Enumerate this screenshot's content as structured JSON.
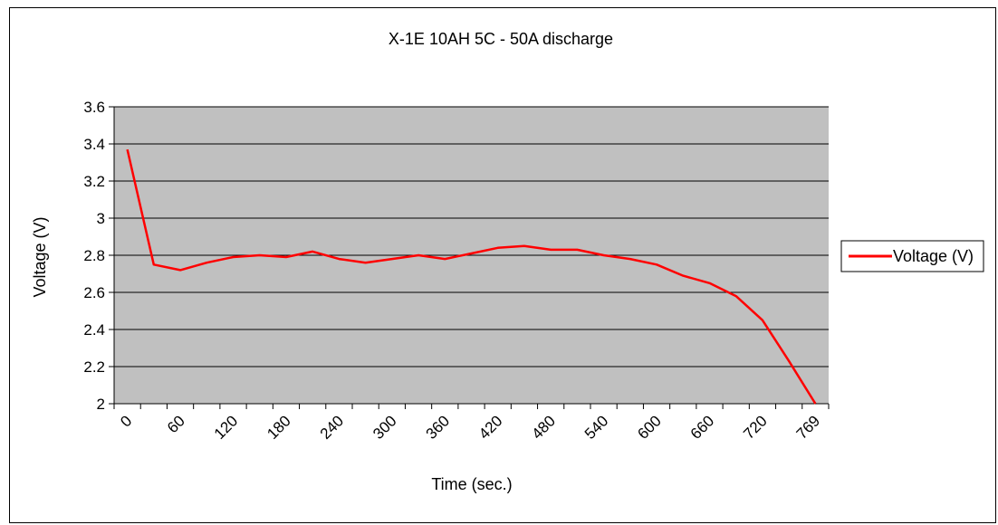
{
  "chart_data": {
    "type": "line",
    "title": "X-1E 10AH 5C - 50A discharge",
    "xlabel": "Time (sec.)",
    "ylabel": "Voltage (V)",
    "ylim": [
      2,
      3.6
    ],
    "y_ticks": [
      "2",
      "2.2",
      "2.4",
      "2.6",
      "2.8",
      "3",
      "3.2",
      "3.4",
      "3.6"
    ],
    "x_tick_labels": [
      "0",
      "60",
      "120",
      "180",
      "240",
      "300",
      "360",
      "420",
      "480",
      "540",
      "600",
      "660",
      "720",
      "769"
    ],
    "x": [
      0,
      30,
      60,
      90,
      120,
      150,
      180,
      210,
      240,
      270,
      300,
      330,
      360,
      390,
      420,
      450,
      480,
      510,
      540,
      570,
      600,
      630,
      660,
      690,
      720,
      750,
      769
    ],
    "series": [
      {
        "name": "Voltage (V)",
        "color": "#ff0000",
        "values": [
          3.37,
          2.75,
          2.72,
          2.76,
          2.79,
          2.8,
          2.79,
          2.82,
          2.78,
          2.76,
          2.78,
          2.8,
          2.78,
          2.81,
          2.84,
          2.85,
          2.83,
          2.83,
          2.8,
          2.78,
          2.75,
          2.69,
          2.65,
          2.58,
          2.45,
          2.23,
          2.0
        ]
      }
    ],
    "grid": true,
    "legend_position": "right",
    "plot_background": "#c0c0c0"
  }
}
